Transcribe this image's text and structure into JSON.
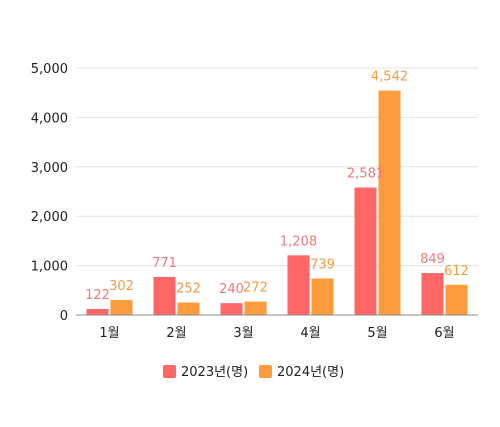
{
  "chart_data": {
    "type": "bar",
    "categories": [
      "1월",
      "2월",
      "3월",
      "4월",
      "5월",
      "6월"
    ],
    "series": [
      {
        "name": "2023년(명)",
        "values": [
          122,
          771,
          240,
          1208,
          2581,
          849
        ],
        "labels": [
          "122",
          "771",
          "240",
          "1,208",
          "2,581",
          "849"
        ],
        "color": "#ff6666",
        "label_color": "#f07a7a"
      },
      {
        "name": "2024년(명)",
        "values": [
          302,
          252,
          272,
          739,
          4542,
          612
        ],
        "labels": [
          "302",
          "252",
          "272",
          "739",
          "4,542",
          "612"
        ],
        "color": "#ff9b3d",
        "label_color": "#f59a45"
      }
    ],
    "ylim": [
      0,
      5000
    ],
    "yticks": [
      0,
      1000,
      2000,
      3000,
      4000,
      5000
    ],
    "ytick_labels": [
      "0",
      "1,000",
      "2,000",
      "3,000",
      "4,000",
      "5,000"
    ],
    "grid": true,
    "legend_position": "bottom-center"
  }
}
